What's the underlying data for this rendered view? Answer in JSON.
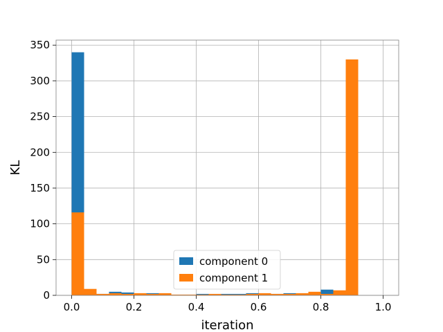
{
  "chart_data": {
    "type": "bar",
    "stacked": false,
    "bin_start": 0.0,
    "bin_width": 0.04,
    "series": [
      {
        "name": "component 0",
        "color": "#1f77b4",
        "values": [
          340,
          8,
          2,
          5,
          4,
          2,
          3,
          2,
          1,
          1,
          2,
          1,
          2,
          2,
          3,
          2,
          2,
          3,
          2,
          2,
          8,
          3
        ]
      },
      {
        "name": "component 1",
        "color": "#ff7f0e",
        "values": [
          116,
          9,
          2,
          3,
          2,
          3,
          2,
          3,
          1,
          1,
          1,
          2,
          1,
          1,
          2,
          3,
          2,
          2,
          3,
          5,
          2,
          7,
          330
        ]
      }
    ],
    "xlabel": "iteration",
    "ylabel": "KL",
    "xlim": [
      -0.05,
      1.05
    ],
    "ylim": [
      0,
      357
    ],
    "xticks": [
      0.0,
      0.2,
      0.4,
      0.6,
      0.8,
      1.0
    ],
    "xtick_labels": [
      "0.0",
      "0.2",
      "0.4",
      "0.6",
      "0.8",
      "1.0"
    ],
    "yticks": [
      0,
      50,
      100,
      150,
      200,
      250,
      300,
      350
    ],
    "ytick_labels": [
      "0",
      "50",
      "100",
      "150",
      "200",
      "250",
      "300",
      "350"
    ],
    "grid": true,
    "legend_placement": "lower-center"
  }
}
